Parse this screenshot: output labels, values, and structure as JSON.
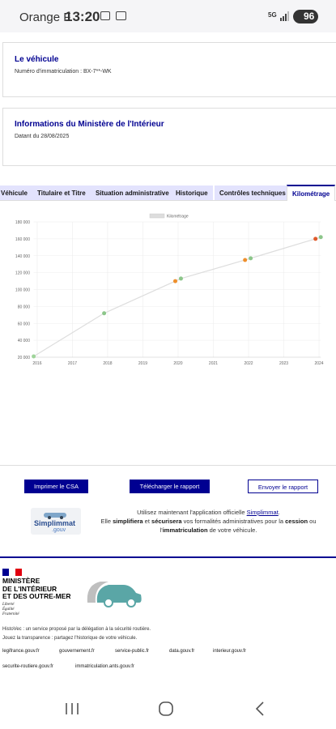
{
  "status_bar": {
    "carrier": "Orange F",
    "time": "13:20",
    "network": "5G",
    "battery": "96"
  },
  "vehicle_card": {
    "title": "Le véhicule",
    "plate": "Numéro d'immatriculation : BX-7**-WK"
  },
  "info_card": {
    "title": "Informations du Ministère de l'Intérieur",
    "date": "Datant du 28/08/2025"
  },
  "tabs": {
    "items": [
      "Véhicule",
      "Titulaire et Titre",
      "Situation administrative",
      "Historique",
      "Contrôles techniques",
      "Kilométrage"
    ],
    "active": 5
  },
  "chart_data": {
    "type": "line",
    "x": [
      2015.9,
      2017.9,
      2019.92,
      2020.08,
      2021.9,
      2022.06,
      2023.9,
      2024.05
    ],
    "series": [
      {
        "name": "Kilométrage",
        "color": "#dddddd",
        "values": [
          21000,
          72000,
          110000,
          113000,
          135000,
          137000,
          160000,
          162000
        ],
        "point_colors": [
          "#9fd49a",
          "#8cc68a",
          "#ee8f2c",
          "#8cc68a",
          "#ee8f2c",
          "#8cc68a",
          "#e05a2a",
          "#8cc68a"
        ]
      }
    ],
    "xlim": [
      2015.9,
      2024.05
    ],
    "xticks": [
      2016,
      2017,
      2018,
      2019,
      2020,
      2021,
      2022,
      2023,
      2024
    ],
    "ylim": [
      20000,
      180000
    ],
    "yticks": [
      {
        "value": 20000,
        "label": "20 000"
      },
      {
        "value": 40000,
        "label": "40 000"
      },
      {
        "value": 60000,
        "label": "60 000"
      },
      {
        "value": 80000,
        "label": "80 000"
      },
      {
        "value": 100000,
        "label": "100 000"
      },
      {
        "value": 120000,
        "label": "120 000"
      },
      {
        "value": 140000,
        "label": "140 000"
      },
      {
        "value": 160000,
        "label": "160 000"
      },
      {
        "value": 180000,
        "label": "180 000"
      }
    ],
    "grid": true
  },
  "buttons": [
    {
      "label": "Imprimer le CSA",
      "style": "filled"
    },
    {
      "label": "Télécharger le rapport",
      "style": "filled"
    },
    {
      "label": "Envoyer le rapport",
      "style": "outline"
    }
  ],
  "promo": {
    "logo_name": "Simplimmat",
    "logo_suffix": ".gouv",
    "lines": [
      [
        {
          "text": "Utilisez maintenant l'application officielle ",
          "bold": false
        },
        {
          "text": "Simplimmat",
          "bold": false,
          "link": true
        },
        {
          "text": ".",
          "bold": false
        }
      ],
      [
        {
          "text": "Elle ",
          "bold": false
        },
        {
          "text": "simplifiera",
          "bold": true
        },
        {
          "text": " et ",
          "bold": false
        },
        {
          "text": "sécurisera",
          "bold": true
        },
        {
          "text": " vos formalités administratives pour la ",
          "bold": false
        },
        {
          "text": "cession",
          "bold": true
        },
        {
          "text": " ou",
          "bold": false
        }
      ],
      [
        {
          "text": "l'",
          "bold": false
        },
        {
          "text": "immatriculation",
          "bold": true
        },
        {
          "text": " de votre véhicule.",
          "bold": false
        }
      ]
    ]
  },
  "footer": {
    "ministry": [
      "MINISTÈRE",
      "DE L'INTÉRIEUR",
      "ET DES OUTRE-MER"
    ],
    "motto": [
      "Liberté",
      "Égalité",
      "Fraternité"
    ],
    "about": [
      "HistoVec : un service proposé par la délégation à la sécurité routière.",
      "Jouez la transparence : partagez l'historique de votre véhicule."
    ],
    "links": [
      [
        "legifrance.gouv.fr",
        "gouvernement.fr",
        "service-public.fr",
        "data.gouv.fr",
        "interieur.gouv.fr"
      ],
      [
        "securite-routiere.gouv.fr",
        "immatriculation.ants.gouv.fr"
      ]
    ]
  }
}
